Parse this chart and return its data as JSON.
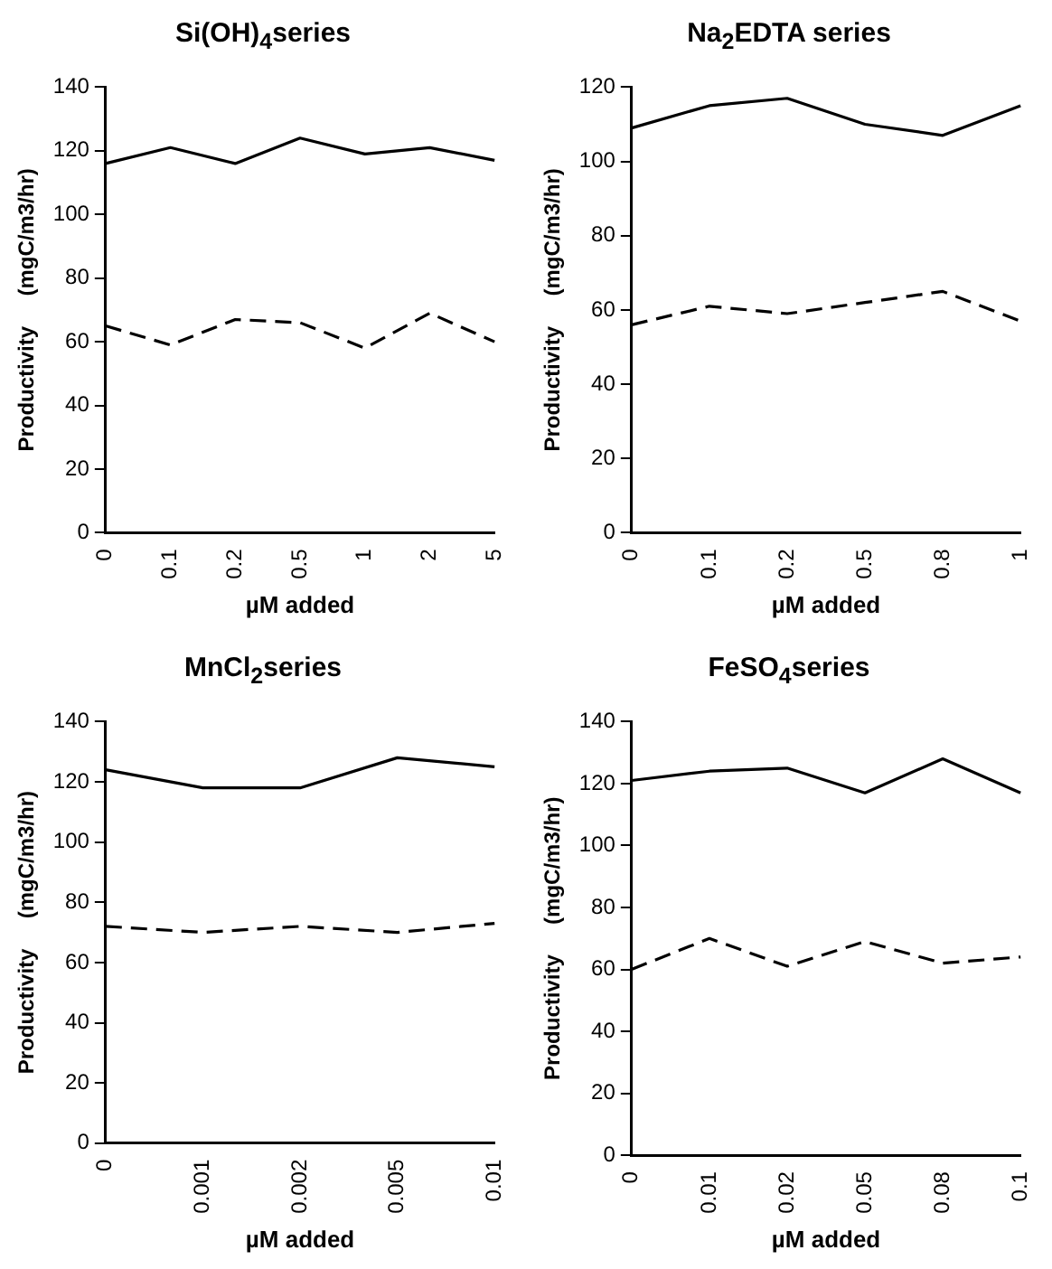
{
  "chart_data": [
    {
      "type": "line",
      "title": "Si(OH)$_{4}$series",
      "xlabel": "µM added",
      "ylabel": "Productivity     (mgC/m3/hr)",
      "categories": [
        "0",
        "0.1",
        "0.2",
        "0.5",
        "1",
        "2",
        "5"
      ],
      "ylim": [
        0,
        140
      ],
      "yticks": [
        0,
        20,
        40,
        60,
        80,
        100,
        120,
        140
      ],
      "marker": "none",
      "series": [
        {
          "color": "#000000",
          "line_style": "solid",
          "values": [
            116,
            121,
            116,
            124,
            119,
            121,
            117
          ]
        },
        {
          "color": "#000000",
          "line_style": "dashed",
          "values": [
            65,
            59,
            67,
            66,
            58,
            69,
            60
          ]
        }
      ]
    },
    {
      "type": "line",
      "title": "Na$_{2}$EDTA series",
      "xlabel": "µM added",
      "ylabel": "Productivity     (mgC/m3/hr)",
      "categories": [
        "0",
        "0.1",
        "0.2",
        "0.5",
        "0.8",
        "1"
      ],
      "ylim": [
        0,
        120
      ],
      "yticks": [
        0,
        20,
        40,
        60,
        80,
        100,
        120
      ],
      "marker": "none",
      "series": [
        {
          "color": "#000000",
          "line_style": "solid",
          "values": [
            109,
            115,
            117,
            110,
            107,
            115
          ]
        },
        {
          "color": "#000000",
          "line_style": "dashed",
          "values": [
            56,
            61,
            59,
            62,
            65,
            57
          ]
        }
      ]
    },
    {
      "type": "line",
      "title": "MnCl$_{2}$series",
      "xlabel": "µM added",
      "ylabel": "Productivity     (mgC/m3/hr)",
      "categories": [
        "0",
        "0.001",
        "0.002",
        "0.005",
        "0.01"
      ],
      "ylim": [
        0,
        140
      ],
      "yticks": [
        0,
        20,
        40,
        60,
        80,
        100,
        120,
        140
      ],
      "marker": "none",
      "series": [
        {
          "color": "#000000",
          "line_style": "solid",
          "values": [
            124,
            118,
            118,
            128,
            125
          ]
        },
        {
          "color": "#000000",
          "line_style": "dashed",
          "values": [
            72,
            70,
            72,
            70,
            73
          ]
        }
      ]
    },
    {
      "type": "line",
      "title": "FeSO$_{4}$series",
      "xlabel": "µM added",
      "ylabel": "Productivity     (mgC/m3/hr)",
      "categories": [
        "0",
        "0.01",
        "0.02",
        "0.05",
        "0.08",
        "0.1"
      ],
      "ylim": [
        0,
        140
      ],
      "yticks": [
        0,
        20,
        40,
        60,
        80,
        100,
        120,
        140
      ],
      "marker": "none",
      "series": [
        {
          "color": "#000000",
          "line_style": "solid",
          "values": [
            121,
            124,
            125,
            117,
            128,
            117
          ]
        },
        {
          "color": "#000000",
          "line_style": "dashed",
          "values": [
            60,
            70,
            61,
            69,
            62,
            64
          ]
        }
      ]
    }
  ]
}
